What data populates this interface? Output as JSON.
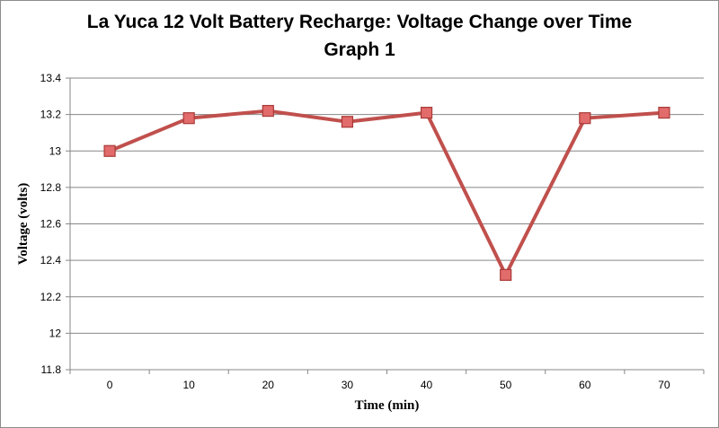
{
  "chart_data": {
    "type": "line",
    "title": "La Yuca 12 Volt Battery Recharge: Voltage Change over Time",
    "subtitle": "Graph 1",
    "xlabel": "Time (min)",
    "ylabel": "Voltage (volts)",
    "categories": [
      "0",
      "10",
      "20",
      "30",
      "40",
      "50",
      "60",
      "70"
    ],
    "series": [
      {
        "values": [
          13.0,
          13.18,
          13.22,
          13.16,
          13.21,
          12.32,
          13.18,
          13.21
        ],
        "color": "#c0504d",
        "marker_color": "#e26b6b",
        "marker": "square"
      }
    ],
    "yticks": [
      "11.8",
      "12",
      "12.2",
      "12.4",
      "12.6",
      "12.8",
      "13",
      "13.2",
      "13.4"
    ],
    "ylim": [
      11.8,
      13.4
    ],
    "grid": "horizontal",
    "legend": "none"
  }
}
